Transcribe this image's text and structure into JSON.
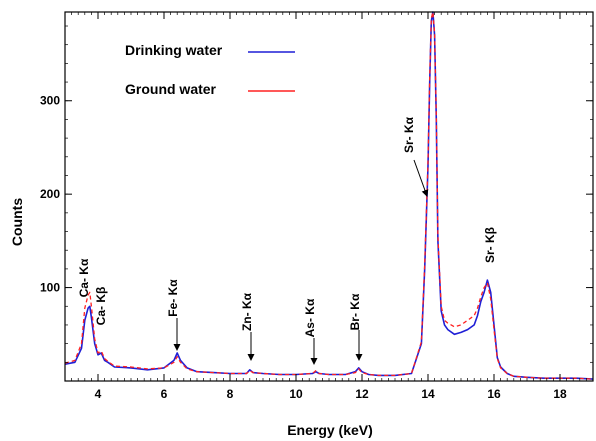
{
  "chart_data": {
    "type": "line",
    "xlabel": "Energy (keV)",
    "ylabel": "Counts",
    "xlim": [
      3.0,
      19.0
    ],
    "ylim": [
      0,
      395
    ],
    "xticks": [
      4,
      6,
      8,
      10,
      12,
      14,
      16,
      18
    ],
    "xtick_labels": [
      "4",
      "6",
      "8",
      "10",
      "12",
      "14",
      "16",
      "18"
    ],
    "yticks": [
      100,
      200,
      300
    ],
    "ytick_labels": [
      "100",
      "200",
      "300"
    ],
    "grid": false,
    "legend_position": "top-left",
    "series": [
      {
        "name": "Drinking water",
        "color": "#1f1fd6",
        "x": [
          3.0,
          3.3,
          3.5,
          3.6,
          3.7,
          3.75,
          3.8,
          3.9,
          4.0,
          4.1,
          4.2,
          4.3,
          4.5,
          5.0,
          5.5,
          6.0,
          6.3,
          6.4,
          6.5,
          6.7,
          7.0,
          7.5,
          8.0,
          8.5,
          8.6,
          8.7,
          9.0,
          9.5,
          10.0,
          10.5,
          10.6,
          10.7,
          11.0,
          11.5,
          11.8,
          11.9,
          12.0,
          12.2,
          12.5,
          13.0,
          13.5,
          13.8,
          13.9,
          14.0,
          14.05,
          14.1,
          14.15,
          14.2,
          14.25,
          14.3,
          14.4,
          14.5,
          14.6,
          14.8,
          15.0,
          15.2,
          15.4,
          15.5,
          15.6,
          15.7,
          15.8,
          15.9,
          16.0,
          16.1,
          16.2,
          16.4,
          16.6,
          17.0,
          17.5,
          18.0,
          18.5,
          19.0
        ],
        "y": [
          18,
          20,
          35,
          65,
          78,
          80,
          68,
          40,
          28,
          30,
          22,
          20,
          15,
          14,
          12,
          14,
          22,
          30,
          22,
          14,
          10,
          9,
          8,
          8,
          12,
          9,
          8,
          7,
          7,
          8,
          10,
          8,
          7,
          7,
          10,
          14,
          10,
          7,
          6,
          6,
          8,
          40,
          120,
          230,
          320,
          385,
          395,
          370,
          280,
          150,
          75,
          60,
          55,
          50,
          52,
          55,
          60,
          70,
          85,
          95,
          108,
          95,
          60,
          25,
          15,
          8,
          5,
          4,
          3,
          3,
          3,
          2
        ]
      },
      {
        "name": "Ground water",
        "color": "#ff2020",
        "x": [
          3.0,
          3.3,
          3.5,
          3.6,
          3.7,
          3.75,
          3.8,
          3.9,
          4.0,
          4.1,
          4.2,
          4.3,
          4.5,
          5.0,
          5.5,
          6.0,
          6.3,
          6.4,
          6.5,
          6.7,
          7.0,
          7.5,
          8.0,
          8.5,
          8.6,
          8.7,
          9.0,
          9.5,
          10.0,
          10.5,
          10.6,
          10.7,
          11.0,
          11.5,
          11.8,
          11.9,
          12.0,
          12.2,
          12.5,
          13.0,
          13.5,
          13.8,
          13.9,
          14.0,
          14.05,
          14.1,
          14.15,
          14.2,
          14.25,
          14.3,
          14.4,
          14.5,
          14.6,
          14.8,
          15.0,
          15.2,
          15.4,
          15.5,
          15.6,
          15.7,
          15.8,
          15.9,
          16.0,
          16.1,
          16.2,
          16.4,
          16.6,
          17.0,
          17.5,
          18.0,
          18.5,
          19.0
        ],
        "y": [
          19,
          22,
          40,
          78,
          92,
          95,
          80,
          45,
          30,
          32,
          24,
          21,
          16,
          15,
          13,
          14,
          20,
          26,
          20,
          13,
          10,
          9,
          8,
          8,
          11,
          9,
          8,
          7,
          7,
          8,
          11,
          8,
          7,
          7,
          9,
          13,
          9,
          7,
          6,
          6,
          8,
          42,
          125,
          235,
          325,
          388,
          395,
          372,
          285,
          155,
          80,
          65,
          62,
          58,
          60,
          65,
          70,
          78,
          90,
          100,
          105,
          88,
          55,
          24,
          14,
          8,
          5,
          4,
          3,
          3,
          3,
          2
        ]
      }
    ],
    "annotations": [
      {
        "label": "Ca- Kα",
        "x": 3.7
      },
      {
        "label": "Ca- Kβ",
        "x": 4.0
      },
      {
        "label": "Fe- Kα",
        "x": 6.4
      },
      {
        "label": "Zn- Kα",
        "x": 8.6
      },
      {
        "label": "As- Kα",
        "x": 10.5
      },
      {
        "label": "Br- Kα",
        "x": 11.9
      },
      {
        "label": "Sr- Kα",
        "x": 14.1
      },
      {
        "label": "Sr- Kβ",
        "x": 15.85
      }
    ]
  }
}
